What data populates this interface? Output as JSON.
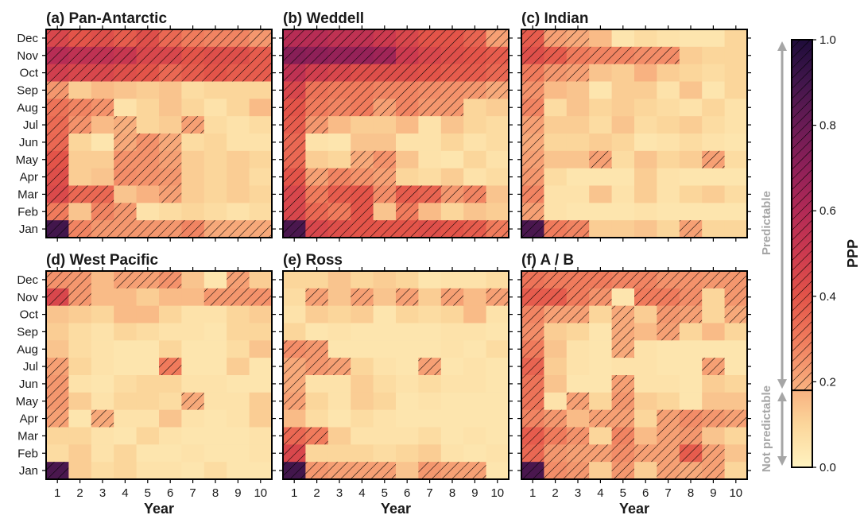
{
  "chart_data": {
    "type": "heatmap",
    "colorbar": {
      "label": "PPP",
      "ticks": [
        "0.0",
        "0.2",
        "0.4",
        "0.6",
        "0.8",
        "1.0"
      ],
      "range": [
        0,
        1
      ],
      "threshold": 0.18,
      "predictable_label": "Predictable",
      "not_predictable_label": "Not predictable"
    },
    "hatch_rule": "cells with PPP above threshold are hatched",
    "panels": [
      {
        "title": "(a) Pan-Antarctic",
        "xlabel": "Year",
        "months": [
          "Dec",
          "Nov",
          "Oct",
          "Sep",
          "Aug",
          "Jul",
          "Jun",
          "May",
          "Apr",
          "Mar",
          "Feb",
          "Jan"
        ],
        "years": [
          "1",
          "2",
          "3",
          "4",
          "5",
          "6",
          "7",
          "8",
          "9",
          "10"
        ],
        "values": [
          [
            0.45,
            0.4,
            0.42,
            0.38,
            0.42,
            0.35,
            0.3,
            0.28,
            0.28,
            0.24
          ],
          [
            0.58,
            0.55,
            0.55,
            0.52,
            0.45,
            0.45,
            0.4,
            0.42,
            0.42,
            0.38
          ],
          [
            0.48,
            0.45,
            0.45,
            0.42,
            0.4,
            0.35,
            0.38,
            0.4,
            0.38,
            0.38
          ],
          [
            0.24,
            0.12,
            0.16,
            0.14,
            0.12,
            0.14,
            0.08,
            0.1,
            0.1,
            0.1
          ],
          [
            0.32,
            0.28,
            0.25,
            0.06,
            0.1,
            0.14,
            0.1,
            0.06,
            0.1,
            0.16
          ],
          [
            0.34,
            0.25,
            0.16,
            0.19,
            0.1,
            0.12,
            0.22,
            0.08,
            0.06,
            0.08
          ],
          [
            0.35,
            0.1,
            0.05,
            0.2,
            0.25,
            0.2,
            0.08,
            0.1,
            0.06,
            0.06
          ],
          [
            0.4,
            0.12,
            0.12,
            0.25,
            0.25,
            0.22,
            0.12,
            0.1,
            0.12,
            0.1
          ],
          [
            0.42,
            0.12,
            0.14,
            0.26,
            0.25,
            0.24,
            0.12,
            0.1,
            0.12,
            0.08
          ],
          [
            0.44,
            0.35,
            0.35,
            0.14,
            0.18,
            0.22,
            0.12,
            0.1,
            0.12,
            0.1
          ],
          [
            0.3,
            0.14,
            0.28,
            0.24,
            0.06,
            0.08,
            0.1,
            0.08,
            0.06,
            0.08
          ],
          [
            0.9,
            0.28,
            0.24,
            0.24,
            0.24,
            0.24,
            0.28,
            0.2,
            0.2,
            0.2
          ]
        ]
      },
      {
        "title": "(b) Weddell",
        "xlabel": "Year",
        "months": [
          "Dec",
          "Nov",
          "Oct",
          "Sep",
          "Aug",
          "Jul",
          "Jun",
          "May",
          "Apr",
          "Mar",
          "Feb",
          "Jan"
        ],
        "years": [
          "1",
          "2",
          "3",
          "4",
          "5",
          "6",
          "7",
          "8",
          "9",
          "10"
        ],
        "values": [
          [
            0.58,
            0.58,
            0.55,
            0.55,
            0.5,
            0.45,
            0.4,
            0.4,
            0.36,
            0.22
          ],
          [
            0.72,
            0.7,
            0.68,
            0.68,
            0.65,
            0.5,
            0.45,
            0.42,
            0.4,
            0.38
          ],
          [
            0.55,
            0.48,
            0.45,
            0.42,
            0.42,
            0.42,
            0.4,
            0.38,
            0.38,
            0.35
          ],
          [
            0.45,
            0.32,
            0.3,
            0.3,
            0.28,
            0.28,
            0.26,
            0.25,
            0.24,
            0.2
          ],
          [
            0.4,
            0.3,
            0.28,
            0.3,
            0.22,
            0.28,
            0.24,
            0.24,
            0.1,
            0.12
          ],
          [
            0.38,
            0.24,
            0.16,
            0.12,
            0.12,
            0.16,
            0.06,
            0.14,
            0.1,
            0.08
          ],
          [
            0.35,
            0.06,
            0.05,
            0.14,
            0.14,
            0.06,
            0.06,
            0.1,
            0.06,
            0.08
          ],
          [
            0.35,
            0.12,
            0.1,
            0.2,
            0.25,
            0.14,
            0.06,
            0.05,
            0.1,
            0.06
          ],
          [
            0.4,
            0.22,
            0.28,
            0.25,
            0.22,
            0.1,
            0.08,
            0.12,
            0.06,
            0.08
          ],
          [
            0.45,
            0.3,
            0.38,
            0.4,
            0.26,
            0.38,
            0.36,
            0.24,
            0.28,
            0.14
          ],
          [
            0.45,
            0.35,
            0.3,
            0.4,
            0.14,
            0.3,
            0.16,
            0.1,
            0.14,
            0.12
          ],
          [
            0.88,
            0.45,
            0.42,
            0.4,
            0.4,
            0.4,
            0.42,
            0.4,
            0.38,
            0.3
          ]
        ]
      },
      {
        "title": "(c) Indian",
        "xlabel": "Year",
        "months": [
          "Dec",
          "Nov",
          "Oct",
          "Sep",
          "Aug",
          "Jul",
          "Jun",
          "May",
          "Apr",
          "Mar",
          "Feb",
          "Jan"
        ],
        "years": [
          "1",
          "2",
          "3",
          "4",
          "5",
          "6",
          "7",
          "8",
          "9",
          "10"
        ],
        "values": [
          [
            0.38,
            0.22,
            0.2,
            0.16,
            0.05,
            0.08,
            0.06,
            0.05,
            0.05,
            0.1
          ],
          [
            0.42,
            0.38,
            0.3,
            0.28,
            0.28,
            0.26,
            0.26,
            0.12,
            0.1,
            0.1
          ],
          [
            0.3,
            0.24,
            0.22,
            0.14,
            0.12,
            0.18,
            0.12,
            0.1,
            0.08,
            0.1
          ],
          [
            0.25,
            0.16,
            0.14,
            0.05,
            0.12,
            0.12,
            0.06,
            0.14,
            0.05,
            0.1
          ],
          [
            0.28,
            0.08,
            0.14,
            0.1,
            0.12,
            0.1,
            0.08,
            0.06,
            0.1,
            0.06
          ],
          [
            0.22,
            0.12,
            0.12,
            0.08,
            0.14,
            0.08,
            0.1,
            0.12,
            0.08,
            0.06
          ],
          [
            0.2,
            0.1,
            0.1,
            0.12,
            0.1,
            0.05,
            0.06,
            0.08,
            0.06,
            0.05
          ],
          [
            0.22,
            0.14,
            0.14,
            0.22,
            0.08,
            0.14,
            0.1,
            0.12,
            0.22,
            0.08
          ],
          [
            0.24,
            0.08,
            0.05,
            0.05,
            0.05,
            0.12,
            0.06,
            0.05,
            0.05,
            0.05
          ],
          [
            0.28,
            0.06,
            0.06,
            0.14,
            0.06,
            0.12,
            0.06,
            0.1,
            0.12,
            0.08
          ],
          [
            0.22,
            0.06,
            0.05,
            0.05,
            0.05,
            0.06,
            0.05,
            0.05,
            0.05,
            0.05
          ],
          [
            0.88,
            0.3,
            0.28,
            0.12,
            0.12,
            0.14,
            0.1,
            0.22,
            0.1,
            0.1
          ]
        ]
      },
      {
        "title": "(d) West Pacific",
        "xlabel": "Year",
        "months": [
          "Dec",
          "Nov",
          "Oct",
          "Sep",
          "Aug",
          "Jul",
          "Jun",
          "May",
          "Apr",
          "Mar",
          "Feb",
          "Jan"
        ],
        "years": [
          "1",
          "2",
          "3",
          "4",
          "5",
          "6",
          "7",
          "8",
          "9",
          "10"
        ],
        "values": [
          [
            0.25,
            0.24,
            0.16,
            0.22,
            0.22,
            0.25,
            0.14,
            0.05,
            0.22,
            0.12
          ],
          [
            0.45,
            0.24,
            0.16,
            0.16,
            0.12,
            0.16,
            0.16,
            0.24,
            0.24,
            0.25
          ],
          [
            0.14,
            0.12,
            0.1,
            0.16,
            0.16,
            0.1,
            0.06,
            0.06,
            0.1,
            0.12
          ],
          [
            0.12,
            0.08,
            0.06,
            0.1,
            0.08,
            0.06,
            0.06,
            0.05,
            0.1,
            0.1
          ],
          [
            0.14,
            0.08,
            0.06,
            0.05,
            0.05,
            0.1,
            0.05,
            0.05,
            0.08,
            0.14
          ],
          [
            0.22,
            0.1,
            0.06,
            0.05,
            0.05,
            0.3,
            0.05,
            0.05,
            0.12,
            0.05
          ],
          [
            0.24,
            0.06,
            0.05,
            0.08,
            0.1,
            0.1,
            0.06,
            0.06,
            0.05,
            0.05
          ],
          [
            0.24,
            0.12,
            0.06,
            0.1,
            0.1,
            0.08,
            0.2,
            0.06,
            0.06,
            0.12
          ],
          [
            0.22,
            0.05,
            0.2,
            0.06,
            0.06,
            0.14,
            0.06,
            0.05,
            0.06,
            0.12
          ],
          [
            0.1,
            0.1,
            0.06,
            0.05,
            0.1,
            0.06,
            0.05,
            0.05,
            0.05,
            0.06
          ],
          [
            0.08,
            0.12,
            0.06,
            0.1,
            0.05,
            0.05,
            0.06,
            0.05,
            0.05,
            0.06
          ],
          [
            0.88,
            0.12,
            0.08,
            0.1,
            0.06,
            0.06,
            0.05,
            0.08,
            0.05,
            0.05
          ]
        ]
      },
      {
        "title": "(e) Ross",
        "xlabel": "Year",
        "months": [
          "Dec",
          "Nov",
          "Oct",
          "Sep",
          "Aug",
          "Jul",
          "Jun",
          "May",
          "Apr",
          "Mar",
          "Feb",
          "Jan"
        ],
        "years": [
          "1",
          "2",
          "3",
          "4",
          "5",
          "6",
          "7",
          "8",
          "9",
          "10"
        ],
        "values": [
          [
            0.1,
            0.1,
            0.14,
            0.1,
            0.12,
            0.1,
            0.05,
            0.06,
            0.06,
            0.08
          ],
          [
            0.08,
            0.22,
            0.14,
            0.22,
            0.14,
            0.22,
            0.12,
            0.22,
            0.16,
            0.22
          ],
          [
            0.06,
            0.12,
            0.1,
            0.12,
            0.05,
            0.1,
            0.08,
            0.1,
            0.16,
            0.06
          ],
          [
            0.1,
            0.05,
            0.06,
            0.05,
            0.05,
            0.05,
            0.05,
            0.06,
            0.06,
            0.05
          ],
          [
            0.26,
            0.24,
            0.05,
            0.05,
            0.05,
            0.05,
            0.05,
            0.06,
            0.05,
            0.08
          ],
          [
            0.2,
            0.24,
            0.22,
            0.1,
            0.06,
            0.05,
            0.22,
            0.05,
            0.06,
            0.05
          ],
          [
            0.2,
            0.06,
            0.06,
            0.12,
            0.08,
            0.06,
            0.08,
            0.06,
            0.06,
            0.05
          ],
          [
            0.22,
            0.1,
            0.06,
            0.12,
            0.1,
            0.05,
            0.06,
            0.05,
            0.05,
            0.05
          ],
          [
            0.16,
            0.08,
            0.05,
            0.08,
            0.06,
            0.05,
            0.05,
            0.05,
            0.05,
            0.05
          ],
          [
            0.35,
            0.3,
            0.12,
            0.06,
            0.06,
            0.06,
            0.08,
            0.05,
            0.06,
            0.05
          ],
          [
            0.45,
            0.1,
            0.1,
            0.1,
            0.08,
            0.1,
            0.12,
            0.06,
            0.05,
            0.06
          ],
          [
            0.9,
            0.24,
            0.22,
            0.22,
            0.22,
            0.14,
            0.24,
            0.22,
            0.22,
            0.05
          ]
        ]
      },
      {
        "title": "(f) A / B",
        "xlabel": "Year",
        "months": [
          "Dec",
          "Nov",
          "Oct",
          "Sep",
          "Aug",
          "Jul",
          "Jun",
          "May",
          "Apr",
          "Mar",
          "Feb",
          "Jan"
        ],
        "years": [
          "1",
          "2",
          "3",
          "4",
          "5",
          "6",
          "7",
          "8",
          "9",
          "10"
        ],
        "values": [
          [
            0.32,
            0.3,
            0.3,
            0.3,
            0.28,
            0.28,
            0.25,
            0.25,
            0.24,
            0.24
          ],
          [
            0.38,
            0.38,
            0.3,
            0.25,
            0.05,
            0.3,
            0.3,
            0.26,
            0.1,
            0.24
          ],
          [
            0.28,
            0.22,
            0.22,
            0.1,
            0.2,
            0.12,
            0.24,
            0.22,
            0.1,
            0.2
          ],
          [
            0.26,
            0.12,
            0.1,
            0.05,
            0.2,
            0.16,
            0.22,
            0.1,
            0.16,
            0.1
          ],
          [
            0.3,
            0.14,
            0.06,
            0.05,
            0.2,
            0.06,
            0.05,
            0.05,
            0.05,
            0.05
          ],
          [
            0.36,
            0.12,
            0.06,
            0.05,
            0.06,
            0.06,
            0.05,
            0.05,
            0.22,
            0.05
          ],
          [
            0.32,
            0.14,
            0.05,
            0.05,
            0.22,
            0.06,
            0.06,
            0.05,
            0.12,
            0.1
          ],
          [
            0.32,
            0.06,
            0.22,
            0.1,
            0.24,
            0.12,
            0.1,
            0.05,
            0.14,
            0.14
          ],
          [
            0.28,
            0.24,
            0.16,
            0.22,
            0.22,
            0.1,
            0.22,
            0.26,
            0.24,
            0.22
          ],
          [
            0.38,
            0.3,
            0.25,
            0.1,
            0.28,
            0.16,
            0.22,
            0.24,
            0.14,
            0.1
          ],
          [
            0.35,
            0.24,
            0.22,
            0.22,
            0.26,
            0.22,
            0.22,
            0.38,
            0.22,
            0.14
          ],
          [
            0.88,
            0.26,
            0.24,
            0.12,
            0.24,
            0.12,
            0.22,
            0.2,
            0.22,
            0.1
          ]
        ]
      }
    ]
  }
}
